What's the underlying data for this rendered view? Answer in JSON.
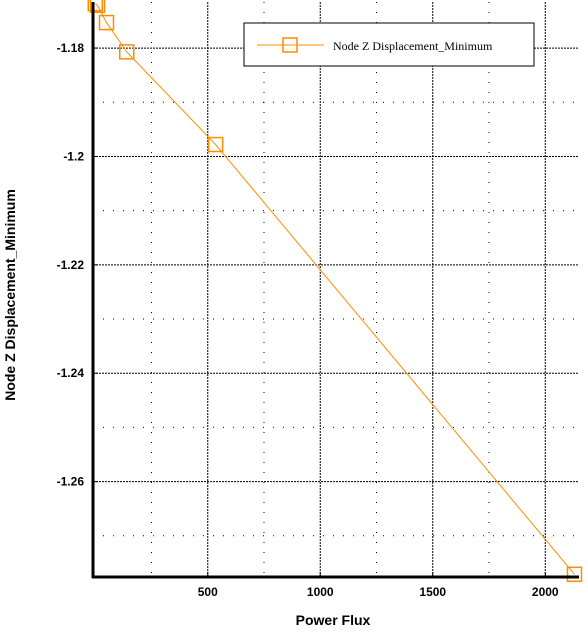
{
  "chart_data": {
    "type": "line",
    "title": "",
    "xlabel": "Power Flux",
    "ylabel": "Node Z Displacement_Minimum",
    "xlim": [
      -10,
      2150
    ],
    "ylim": [
      -1.2776,
      -1.1715
    ],
    "xticks": [
      500,
      1000,
      1500,
      2000
    ],
    "xtick_labels": [
      "500",
      "1000",
      "1500",
      "2000"
    ],
    "yticks": [
      -1.18,
      -1.2,
      -1.22,
      -1.24,
      -1.26
    ],
    "ytick_labels": [
      "-1.18",
      "-1.2",
      "-1.22",
      "-1.24",
      "-1.26"
    ],
    "grid": true,
    "legend_position": "top-right",
    "series": [
      {
        "name": "Node Z Displacement_Minimum",
        "color": "#ff8c00",
        "marker": "square",
        "x": [
          0,
          10,
          50,
          140,
          535,
          2130
        ],
        "y": [
          -1.1718,
          -1.1721,
          -1.1753,
          -1.1807,
          -1.1978,
          -1.2771
        ]
      }
    ]
  }
}
